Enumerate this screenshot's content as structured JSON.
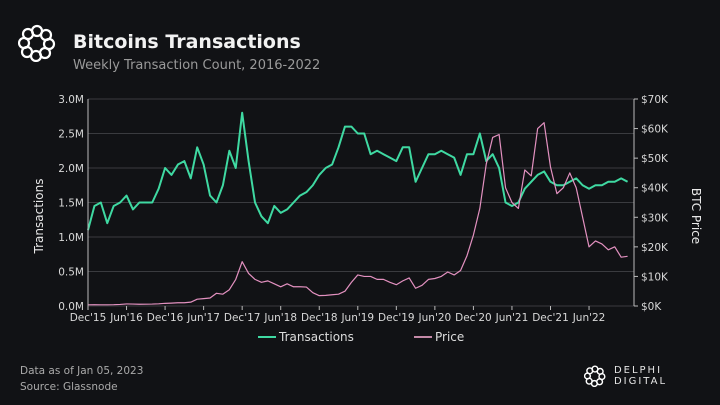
{
  "header": {
    "title": "Bitcoins Transactions",
    "subtitle": "Weekly Transaction Count, 2016-2022"
  },
  "footer": {
    "data_as_of": "Data as of Jan 05, 2023",
    "source": "Source: Glassnode",
    "brand": "DELPHI DIGITAL",
    "logo_icon": "delphi-knot-icon"
  },
  "colors": {
    "background": "#111215",
    "transactions": "#3fd9a2",
    "price": "#e391c0",
    "grid": "#3a3b3f"
  },
  "chart_data": {
    "type": "line",
    "grid": true,
    "legend_placement": "bottom",
    "xlabel": "",
    "ylabel": "Transactions",
    "y2label": "BTC Price",
    "ylim": [
      0,
      3000000
    ],
    "y2lim": [
      0,
      70000
    ],
    "xlim": [
      "2015-12",
      "2023-01"
    ],
    "yticks": [
      "0.0M",
      "0.5M",
      "1.0M",
      "1.5M",
      "2.0M",
      "2.5M",
      "3.0M"
    ],
    "y2ticks": [
      "$0K",
      "$10K",
      "$20K",
      "$30K",
      "$40K",
      "$50K",
      "$60K",
      "$70K"
    ],
    "xticks": [
      {
        "label": "Dec'15",
        "date": "2015-12"
      },
      {
        "label": "Jun'16",
        "date": "2016-06"
      },
      {
        "label": "Dec'16",
        "date": "2016-12"
      },
      {
        "label": "Jun'17",
        "date": "2017-06"
      },
      {
        "label": "Dec'17",
        "date": "2017-12"
      },
      {
        "label": "Jun'18",
        "date": "2018-06"
      },
      {
        "label": "Dec'18",
        "date": "2018-12"
      },
      {
        "label": "Jun'19",
        "date": "2019-06"
      },
      {
        "label": "Dec'19",
        "date": "2019-12"
      },
      {
        "label": "Jun'20",
        "date": "2020-06"
      },
      {
        "label": "Dec'20",
        "date": "2020-12"
      },
      {
        "label": "Jun'21",
        "date": "2021-06"
      },
      {
        "label": "Dec'21",
        "date": "2021-12"
      },
      {
        "label": "Jun'22",
        "date": "2022-06"
      }
    ],
    "x": [
      "2015-12",
      "2016-01",
      "2016-02",
      "2016-03",
      "2016-04",
      "2016-05",
      "2016-06",
      "2016-07",
      "2016-08",
      "2016-09",
      "2016-10",
      "2016-11",
      "2016-12",
      "2017-01",
      "2017-02",
      "2017-03",
      "2017-04",
      "2017-05",
      "2017-06",
      "2017-07",
      "2017-08",
      "2017-09",
      "2017-10",
      "2017-11",
      "2017-12",
      "2018-01",
      "2018-02",
      "2018-03",
      "2018-04",
      "2018-05",
      "2018-06",
      "2018-07",
      "2018-08",
      "2018-09",
      "2018-10",
      "2018-11",
      "2018-12",
      "2019-01",
      "2019-02",
      "2019-03",
      "2019-04",
      "2019-05",
      "2019-06",
      "2019-07",
      "2019-08",
      "2019-09",
      "2019-10",
      "2019-11",
      "2019-12",
      "2020-01",
      "2020-02",
      "2020-03",
      "2020-04",
      "2020-05",
      "2020-06",
      "2020-07",
      "2020-08",
      "2020-09",
      "2020-10",
      "2020-11",
      "2020-12",
      "2021-01",
      "2021-02",
      "2021-03",
      "2021-04",
      "2021-05",
      "2021-06",
      "2021-07",
      "2021-08",
      "2021-09",
      "2021-10",
      "2021-11",
      "2021-12",
      "2022-01",
      "2022-02",
      "2022-03",
      "2022-04",
      "2022-05",
      "2022-06",
      "2022-07",
      "2022-08",
      "2022-09",
      "2022-10",
      "2022-11",
      "2022-12"
    ],
    "series": [
      {
        "name": "Transactions",
        "axis": "left",
        "values": [
          1100000,
          1450000,
          1500000,
          1200000,
          1450000,
          1500000,
          1600000,
          1400000,
          1500000,
          1500000,
          1500000,
          1700000,
          2000000,
          1900000,
          2050000,
          2100000,
          1850000,
          2300000,
          2050000,
          1600000,
          1500000,
          1750000,
          2250000,
          2000000,
          2800000,
          2100000,
          1500000,
          1300000,
          1200000,
          1450000,
          1350000,
          1400000,
          1500000,
          1600000,
          1650000,
          1750000,
          1900000,
          2000000,
          2050000,
          2300000,
          2600000,
          2600000,
          2500000,
          2500000,
          2200000,
          2250000,
          2200000,
          2150000,
          2100000,
          2300000,
          2300000,
          1800000,
          2000000,
          2200000,
          2200000,
          2250000,
          2200000,
          2150000,
          1900000,
          2200000,
          2200000,
          2500000,
          2100000,
          2200000,
          2000000,
          1500000,
          1450000,
          1500000,
          1700000,
          1800000,
          1900000,
          1950000,
          1800000,
          1750000,
          1750000,
          1800000,
          1850000,
          1750000,
          1700000,
          1750000,
          1750000,
          1800000,
          1800000,
          1850000,
          1800000
        ]
      },
      {
        "name": "Price",
        "axis": "right",
        "values": [
          400,
          420,
          400,
          410,
          440,
          520,
          700,
          660,
          580,
          610,
          650,
          740,
          900,
          980,
          1100,
          1100,
          1300,
          2300,
          2500,
          2700,
          4300,
          4000,
          5500,
          9000,
          15000,
          11000,
          9000,
          8000,
          8500,
          7500,
          6500,
          7500,
          6500,
          6500,
          6400,
          4500,
          3500,
          3600,
          3800,
          4000,
          5000,
          8000,
          10500,
          10000,
          10000,
          9000,
          9000,
          8000,
          7200,
          8500,
          9500,
          6000,
          7000,
          9000,
          9300,
          10000,
          11500,
          10500,
          12000,
          17000,
          24000,
          33000,
          48000,
          57000,
          58000,
          40000,
          35000,
          33000,
          46000,
          44000,
          60000,
          62000,
          47000,
          38000,
          40000,
          45000,
          40000,
          30000,
          20000,
          22000,
          21000,
          19000,
          20000,
          16500,
          16800
        ]
      }
    ]
  }
}
